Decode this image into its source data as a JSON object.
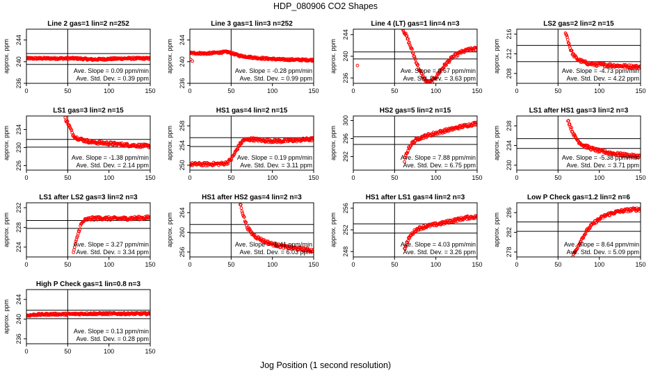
{
  "page": {
    "title": "HDP_080906  CO2 Shapes",
    "xlabel": "Jog Position (1 second resolution)"
  },
  "colors": {
    "points": "#ff0000",
    "axes": "#000000"
  },
  "chart_data": [
    {
      "type": "scatter",
      "title": "Line 2 gas=1 lin=2 n=252",
      "ylabel": "approx. ppm",
      "xlim": [
        0,
        150
      ],
      "xticks": [
        0,
        50,
        100,
        150
      ],
      "ylim": [
        236,
        246
      ],
      "yticks": [
        236,
        240,
        244
      ],
      "vline": 50,
      "hlines": [
        241.5,
        239.5
      ],
      "slope_label": "Ave. Slope =",
      "slope_value": "0.09 ppm/min",
      "sd_label": "Ave. Std. Dev. =",
      "sd_value": "0.39 ppm",
      "series": [
        {
          "shape": "flat",
          "x": [
            0,
            20,
            40,
            60,
            80,
            100,
            120,
            150
          ],
          "y": [
            240.6,
            240.6,
            240.6,
            240.6,
            240.4,
            240.5,
            240.6,
            240.6
          ]
        }
      ]
    },
    {
      "type": "scatter",
      "title": "Line 3 gas=1 lin=3 n=252",
      "ylabel": "approx. ppm",
      "xlim": [
        0,
        150
      ],
      "xticks": [
        0,
        50,
        100,
        150
      ],
      "ylim": [
        236,
        246
      ],
      "yticks": [
        236,
        240,
        244
      ],
      "vline": 50,
      "hlines": [],
      "slope_label": "Ave. Slope =",
      "slope_value": "-0.28 ppm/min",
      "sd_label": "Ave. Std. Dev. =",
      "sd_value": "0.99 ppm",
      "series": [
        {
          "shape": "flat",
          "x": [
            0,
            20,
            45,
            50,
            60,
            80,
            110,
            150
          ],
          "y": [
            241.6,
            241.5,
            241.8,
            241.6,
            241.1,
            240.7,
            240.4,
            240.3
          ]
        }
      ],
      "extra_points": {
        "x": [
          1,
          3
        ],
        "y": [
          240.4,
          240.1
        ]
      }
    },
    {
      "type": "scatter",
      "title": "Line 4 (LT) gas=1 lin=4 n=3",
      "ylabel": "approx. ppm",
      "xlim": [
        0,
        150
      ],
      "xticks": [
        0,
        50,
        100,
        150
      ],
      "ylim": [
        235,
        245
      ],
      "yticks": [
        236,
        240,
        244
      ],
      "vline": 50,
      "hlines": [
        240.8,
        239.5
      ],
      "slope_label": "Ave. Slope =",
      "slope_value": "0.67 ppm/min",
      "sd_label": "Ave. Std. Dev. =",
      "sd_value": "3.63 ppm",
      "series": [
        {
          "shape": "curve",
          "x": [
            60,
            65,
            70,
            75,
            80,
            85,
            90,
            95,
            100,
            110,
            120,
            130,
            140,
            150
          ],
          "y": [
            245,
            243.5,
            241.5,
            239.5,
            237.5,
            236,
            235.2,
            235.3,
            236.2,
            238.2,
            239.8,
            240.7,
            241.2,
            241.4
          ]
        }
      ],
      "extra_points": {
        "x": [
          5
        ],
        "y": [
          238.3
        ]
      }
    },
    {
      "type": "scatter",
      "title": "LS2 gas=2 lin=2 n=15",
      "ylabel": "approx. ppm",
      "xlim": [
        0,
        150
      ],
      "xticks": [
        0,
        50,
        100,
        150
      ],
      "ylim": [
        206,
        217
      ],
      "yticks": [
        208,
        212,
        216
      ],
      "vline": 50,
      "hlines": [
        213.7,
        210.4
      ],
      "slope_label": "Ave. Slope =",
      "slope_value": "-4.73 ppm/min",
      "sd_label": "Ave. Std. Dev. =",
      "sd_value": "4.22 ppm",
      "series": [
        {
          "shape": "curve",
          "x": [
            59,
            62,
            65,
            68,
            72,
            78,
            85,
            95,
            110,
            130,
            150
          ],
          "y": [
            216.5,
            214.8,
            213,
            211.9,
            211.1,
            210.5,
            210.1,
            209.8,
            209.7,
            209.5,
            209.3
          ]
        }
      ]
    },
    {
      "type": "scatter",
      "title": "LS1 gas=3 lin=2 n=15",
      "ylabel": "approx. ppm",
      "xlim": [
        0,
        150
      ],
      "xticks": [
        0,
        50,
        100,
        150
      ],
      "ylim": [
        225,
        237
      ],
      "yticks": [
        226,
        230,
        234
      ],
      "vline": 50,
      "hlines": [
        231.8,
        230.1
      ],
      "slope_label": "Ave. Slope =",
      "slope_value": "-1.38 ppm/min",
      "sd_label": "Ave. Std. Dev. =",
      "sd_value": "2.14 ppm",
      "series": [
        {
          "shape": "curve",
          "x": [
            47,
            50,
            53,
            56,
            60,
            65,
            70,
            80,
            100,
            120,
            150
          ],
          "y": [
            236.5,
            235.5,
            234.3,
            233,
            232.2,
            231.9,
            231.6,
            231.2,
            230.9,
            230.6,
            230.3
          ]
        }
      ]
    },
    {
      "type": "scatter",
      "title": "HS1 gas=4 lin=2 n=15",
      "ylabel": "approx. ppm",
      "xlim": [
        0,
        150
      ],
      "xticks": [
        0,
        50,
        100,
        150
      ],
      "ylim": [
        249,
        260
      ],
      "yticks": [
        250,
        254,
        258
      ],
      "vline": 50,
      "hlines": [
        255.6,
        253.8
      ],
      "slope_label": "Ave. Slope =",
      "slope_value": "0.19 ppm/min",
      "sd_label": "Ave. Std. Dev. =",
      "sd_value": "3.11 ppm",
      "series": [
        {
          "shape": "curve",
          "x": [
            0,
            20,
            40,
            45,
            50,
            55,
            60,
            65,
            75,
            90,
            110,
            130,
            150
          ],
          "y": [
            250.2,
            250.2,
            250.3,
            250.5,
            251.2,
            252.6,
            254.1,
            255.1,
            255.3,
            255,
            254.9,
            255.1,
            255.3
          ]
        }
      ]
    },
    {
      "type": "scatter",
      "title": "HS2 gas=5 lin=2 n=15",
      "ylabel": "approx. ppm",
      "xlim": [
        0,
        150
      ],
      "xticks": [
        0,
        50,
        100,
        150
      ],
      "ylim": [
        289,
        301
      ],
      "yticks": [
        292,
        296,
        300
      ],
      "vline": 50,
      "hlines": [
        296.4,
        294.7
      ],
      "slope_label": "Ave. Slope =",
      "slope_value": "7.88 ppm/min",
      "sd_label": "Ave. Std. Dev. =",
      "sd_value": "6.75 ppm",
      "series": [
        {
          "shape": "curve",
          "x": [
            62,
            64,
            67,
            70,
            75,
            80,
            90,
            100,
            110,
            120,
            130,
            140,
            150
          ],
          "y": [
            291,
            292.5,
            293.8,
            294.7,
            295.6,
            296.1,
            296.7,
            297.2,
            297.7,
            298.1,
            298.6,
            299,
            299.4
          ]
        }
      ]
    },
    {
      "type": "scatter",
      "title": "LS1 after HS1 gas=3 lin=2 n=3",
      "ylabel": "approx. ppm",
      "xlim": [
        0,
        150
      ],
      "xticks": [
        0,
        50,
        100,
        150
      ],
      "ylim": [
        229,
        240
      ],
      "yticks": [
        230,
        234,
        238
      ],
      "vline": 50,
      "hlines": [
        235.4,
        233.4
      ],
      "slope_label": "Ave. Slope =",
      "slope_value": "-5.38 ppm/min",
      "sd_label": "Ave. Std. Dev. =",
      "sd_value": "3.71 ppm",
      "series": [
        {
          "shape": "curve",
          "x": [
            62,
            65,
            70,
            75,
            80,
            90,
            100,
            110,
            120,
            130,
            140,
            150
          ],
          "y": [
            239.3,
            237.8,
            235.9,
            234.8,
            234.1,
            233.4,
            232.9,
            232.6,
            232.3,
            232.1,
            231.9,
            231.8
          ]
        }
      ]
    },
    {
      "type": "scatter",
      "title": "LS1 after LS2 gas=3 lin=2 n=3",
      "ylabel": "approx. ppm",
      "xlim": [
        0,
        150
      ],
      "xticks": [
        0,
        50,
        100,
        150
      ],
      "ylim": [
        222,
        233
      ],
      "yticks": [
        224,
        228,
        232
      ],
      "vline": 50,
      "hlines": [
        229.4,
        227.8
      ],
      "slope_label": "Ave. Slope =",
      "slope_value": "3.27 ppm/min",
      "sd_label": "Ave. Std. Dev. =",
      "sd_value": "3.34 ppm",
      "series": [
        {
          "shape": "curve",
          "x": [
            57,
            60,
            63,
            66,
            70,
            75,
            80,
            90,
            100,
            120,
            150
          ],
          "y": [
            223,
            225,
            227,
            228.5,
            229.4,
            229.7,
            229.8,
            229.9,
            229.8,
            229.8,
            230
          ]
        }
      ]
    },
    {
      "type": "scatter",
      "title": "HS1 after HS2 gas=4 lin=2 n=3",
      "ylabel": "approx. ppm",
      "xlim": [
        0,
        150
      ],
      "xticks": [
        0,
        50,
        100,
        150
      ],
      "ylim": [
        255,
        266
      ],
      "yticks": [
        256,
        260,
        264
      ],
      "vline": 50,
      "hlines": [
        261.6,
        259.9
      ],
      "slope_label": "Ave. Slope =",
      "slope_value": "-8.41 ppm/min",
      "sd_label": "Ave. Std. Dev. =",
      "sd_value": "6.03 ppm",
      "series": [
        {
          "shape": "curve",
          "x": [
            61,
            64,
            67,
            70,
            75,
            80,
            90,
            100,
            110,
            120,
            130,
            140,
            150
          ],
          "y": [
            265.8,
            264,
            262.2,
            260.9,
            259.8,
            259.1,
            258.2,
            257.6,
            257.2,
            256.9,
            256.7,
            256.5,
            256.3
          ]
        }
      ]
    },
    {
      "type": "scatter",
      "title": "HS1 after LS1 gas=4 lin=2 n=3",
      "ylabel": "approx. ppm",
      "xlim": [
        0,
        150
      ],
      "xticks": [
        0,
        50,
        100,
        150
      ],
      "ylim": [
        247,
        257
      ],
      "yticks": [
        248,
        252,
        256
      ],
      "vline": 50,
      "hlines": [
        253.1,
        251.4
      ],
      "slope_label": "Ave. Slope =",
      "slope_value": "4.03 ppm/min",
      "sd_label": "Ave. Std. Dev. =",
      "sd_value": "3.26 ppm",
      "series": [
        {
          "shape": "curve",
          "x": [
            62,
            65,
            68,
            72,
            76,
            80,
            90,
            100,
            110,
            120,
            130,
            140,
            150
          ],
          "y": [
            248.4,
            249.6,
            250.6,
            251.4,
            252,
            252.3,
            252.7,
            253,
            253.3,
            253.7,
            254,
            254.3,
            254.4
          ]
        }
      ]
    },
    {
      "type": "scatter",
      "title": "Low P Check gas=1.2 lin=2 n=6",
      "ylabel": "approx. ppm",
      "xlim": [
        0,
        150
      ],
      "xticks": [
        0,
        50,
        100,
        150
      ],
      "ylim": [
        277,
        288
      ],
      "yticks": [
        278,
        282,
        286
      ],
      "vline": 50,
      "hlines": [
        284.1,
        282.2
      ],
      "slope_label": "Ave. Slope =",
      "slope_value": "8.64 ppm/min",
      "sd_label": "Ave. Std. Dev. =",
      "sd_value": "5.09 ppm",
      "series": [
        {
          "shape": "curve",
          "x": [
            68,
            72,
            76,
            80,
            85,
            90,
            95,
            100,
            105,
            110,
            120,
            130,
            140,
            150
          ],
          "y": [
            277.2,
            278.5,
            279.8,
            281,
            282.3,
            283.3,
            284.1,
            284.7,
            285.2,
            285.6,
            286.1,
            286.4,
            286.6,
            286.7
          ]
        }
      ]
    },
    {
      "type": "scatter",
      "title": "High P Check gas=1 lin=0.8 n=3",
      "ylabel": "approx. ppm",
      "xlim": [
        0,
        150
      ],
      "xticks": [
        0,
        50,
        100,
        150
      ],
      "ylim": [
        235,
        246
      ],
      "yticks": [
        236,
        240,
        244
      ],
      "vline": 50,
      "hlines": [
        241.8,
        240.1
      ],
      "slope_label": "Ave. Slope =",
      "slope_value": "0.13 ppm/min",
      "sd_label": "Ave. Std. Dev. =",
      "sd_value": "0.28 ppm",
      "series": [
        {
          "shape": "flat",
          "x": [
            0,
            10,
            30,
            50,
            70,
            90,
            110,
            130,
            150
          ],
          "y": [
            240.7,
            240.9,
            241,
            241,
            241.1,
            241.1,
            241.1,
            241.1,
            241.1
          ]
        }
      ]
    }
  ]
}
